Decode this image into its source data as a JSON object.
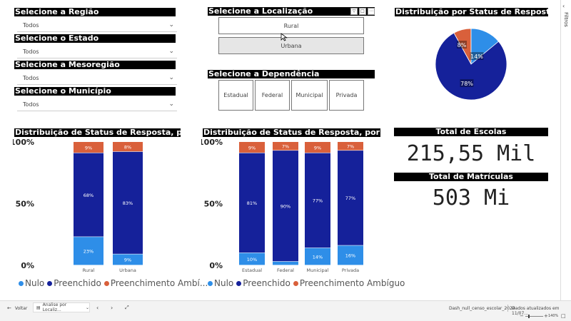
{
  "slicers": {
    "regiao": {
      "title": "Selecione a Região",
      "value": "Todos"
    },
    "estado": {
      "title": "Selecione o Estado",
      "value": "Todos"
    },
    "mesoregiao": {
      "title": "Selecione a Mesoregião",
      "value": "Todos"
    },
    "municipio": {
      "title": "Selecione o Município",
      "value": "Todos"
    },
    "localizacao": {
      "title": "Selecione a Localização",
      "options": [
        "Rural",
        "Urbana"
      ],
      "selected": "Urbana"
    },
    "dependencia": {
      "title": "Selecione a Dependência",
      "options": [
        "Estadual",
        "Federal",
        "Municipal",
        "Privada"
      ]
    }
  },
  "pie": {
    "title": "Distribuição por Status de Resposta",
    "labels": [
      "8%",
      "14%",
      "78%"
    ]
  },
  "chart_local_title": "Distribuição de Status de Resposta, por Localização",
  "chart_dep_title": "Distribuição de Status de Resposta, por Dependência",
  "legend": {
    "nulo": "Nulo",
    "preenchido": "Preenchido",
    "ambiguo_short": "Preenchimento Ambí...",
    "ambiguo": "Preenchimento Ambíguo"
  },
  "kpis": {
    "escolas_title": "Total de Escolas",
    "escolas_value": "215,55 Mil",
    "matriculas_title": "Total de Matrículas",
    "matriculas_value": "503 Mi"
  },
  "filters_label": "Filtros",
  "statusbar": {
    "back": "Voltar",
    "page_tab": "Analise por Localiz...",
    "file_name": "Dash_null_censo_escolar_2024",
    "updated": "Dados atualizados em 11/07...",
    "zoom": "140%"
  },
  "colors": {
    "nulo": "#2e8ee8",
    "preenchido": "#15219a",
    "ambiguo": "#d9603b"
  },
  "chart_data": [
    {
      "type": "bar",
      "stacked": true,
      "title": "Distribuição de Status de Resposta, por Localização",
      "categories": [
        "Rural",
        "Urbana"
      ],
      "ylim": [
        0,
        100
      ],
      "yticks": [
        "0%",
        "50%",
        "100%"
      ],
      "series": [
        {
          "name": "Nulo",
          "values": [
            23,
            9
          ],
          "labels": [
            "23%",
            "9%"
          ]
        },
        {
          "name": "Preenchido",
          "values": [
            68,
            83
          ],
          "labels": [
            "68%",
            "83%"
          ]
        },
        {
          "name": "Preenchimento Ambíguo",
          "values": [
            9,
            8
          ],
          "labels": [
            "9%",
            "8%"
          ]
        }
      ]
    },
    {
      "type": "bar",
      "stacked": true,
      "title": "Distribuição de Status de Resposta, por Dependência",
      "categories": [
        "Estadual",
        "Federal",
        "Municipal",
        "Privada"
      ],
      "ylim": [
        0,
        100
      ],
      "yticks": [
        "0%",
        "50%",
        "100%"
      ],
      "series": [
        {
          "name": "Nulo",
          "values": [
            10,
            3,
            14,
            16
          ],
          "labels": [
            "10%",
            "",
            "14%",
            "16%"
          ]
        },
        {
          "name": "Preenchido",
          "values": [
            81,
            90,
            77,
            77
          ],
          "labels": [
            "81%",
            "90%",
            "77%",
            "77%"
          ]
        },
        {
          "name": "Preenchimento Ambíguo",
          "values": [
            9,
            7,
            9,
            7
          ],
          "labels": [
            "9%",
            "7%",
            "9%",
            "7%"
          ]
        }
      ]
    },
    {
      "type": "pie",
      "title": "Distribuição por Status de Resposta",
      "labels": [
        "Preenchimento Ambíguo",
        "Nulo",
        "Preenchido"
      ],
      "values": [
        8,
        14,
        78
      ]
    }
  ]
}
